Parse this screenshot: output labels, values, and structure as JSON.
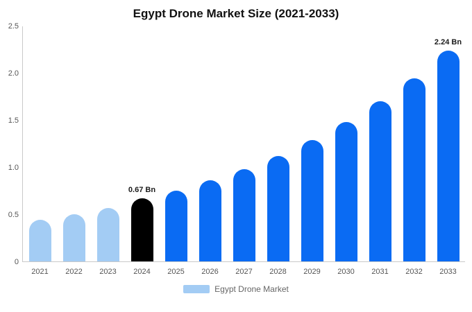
{
  "chart_data": {
    "type": "bar",
    "title": "Egypt Drone Market Size (2021-2033)",
    "categories": [
      "2021",
      "2022",
      "2023",
      "2024",
      "2025",
      "2026",
      "2027",
      "2028",
      "2029",
      "2030",
      "2031",
      "2032",
      "2033"
    ],
    "values": [
      0.44,
      0.5,
      0.57,
      0.67,
      0.75,
      0.86,
      0.98,
      1.12,
      1.29,
      1.48,
      1.7,
      1.95,
      2.24
    ],
    "data_labels": [
      "",
      "",
      "",
      "0.67 Bn",
      "",
      "",
      "",
      "",
      "",
      "",
      "",
      "",
      "2.24 Bn"
    ],
    "bar_colors": [
      "#a3ccf4",
      "#a3ccf4",
      "#a3ccf4",
      "#000000",
      "#0a6bf3",
      "#0a6bf3",
      "#0a6bf3",
      "#0a6bf3",
      "#0a6bf3",
      "#0a6bf3",
      "#0a6bf3",
      "#0a6bf3",
      "#0a6bf3"
    ],
    "xlabel": "",
    "ylabel": "",
    "ylim": [
      0,
      2.5
    ],
    "y_ticks": [
      {
        "value": 0,
        "label": "0"
      },
      {
        "value": 0.5,
        "label": "0.5"
      },
      {
        "value": 1.0,
        "label": "1.0"
      },
      {
        "value": 1.5,
        "label": "1.5"
      },
      {
        "value": 2.0,
        "label": "2.0"
      },
      {
        "value": 2.5,
        "label": "2.5"
      }
    ],
    "grid": false,
    "legend_position": "bottom"
  },
  "legend": {
    "label": "Egypt Drone Market",
    "swatch_color": "#a3ccf4"
  },
  "colors": {
    "historical_bar": "#a3ccf4",
    "current_year_bar": "#000000",
    "forecast_bar": "#0a6bf3",
    "axis_line": "#c9c9c9",
    "tick_text": "#555555",
    "title_text": "#111111"
  }
}
